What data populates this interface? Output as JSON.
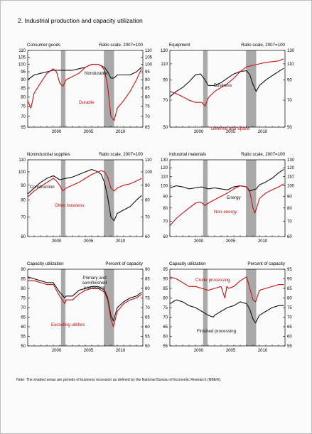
{
  "figure": {
    "title": "2.  Industrial production and capacity utilization",
    "note": "Note: The shaded areas are periods of business recession as defined by the National Bureau of Economic Research (NBER)."
  },
  "colors": {
    "black_series": "#111111",
    "red_series": "#cc1111",
    "recession_shading": "#a9a9a9",
    "axis": "#000000"
  },
  "chart_data": [
    {
      "type": "line",
      "title": "Consumer goods",
      "scale_note": "Ratio scale, 2007=100",
      "log_scale": true,
      "xlim": [
        1996,
        2014
      ],
      "x_ticks": [
        2000,
        2005,
        2010
      ],
      "ylim": [
        65,
        110
      ],
      "y_ticks": [
        65,
        70,
        75,
        80,
        85,
        90,
        95,
        100,
        105,
        110
      ],
      "recessions": [
        [
          2001.2,
          2001.9
        ],
        [
          2007.9,
          2009.5
        ]
      ],
      "series": [
        {
          "name": "Nondurable",
          "color": "black",
          "x": [
            1996,
            1997,
            1998,
            1999,
            2000,
            2001,
            2002,
            2003,
            2004,
            2005,
            2006,
            2007,
            2008,
            2008.5,
            2009,
            2009.5,
            2010,
            2011,
            2012,
            2013,
            2013.8
          ],
          "y": [
            90,
            93,
            94,
            95,
            96,
            96,
            96,
            96,
            97,
            98,
            100,
            100,
            98,
            95,
            91,
            91,
            93,
            93,
            93,
            95,
            98
          ]
        },
        {
          "name": "Durable",
          "color": "red",
          "x": [
            1996,
            1996.5,
            1997,
            1998,
            1999,
            2000,
            2000.5,
            2001,
            2001.5,
            2002,
            2003,
            2004,
            2005,
            2006,
            2007,
            2007.5,
            2008,
            2008.5,
            2009,
            2009.5,
            2010,
            2011,
            2012,
            2013,
            2013.8
          ],
          "y": [
            78,
            74,
            82,
            88,
            94,
            97,
            95,
            88,
            86,
            90,
            92,
            94,
            98,
            100,
            100,
            99,
            96,
            86,
            70,
            68,
            74,
            78,
            83,
            90,
            97
          ]
        }
      ],
      "labels": [
        "Nondurable",
        "Durable"
      ]
    },
    {
      "type": "line",
      "title": "Equipment",
      "scale_note": "Ratio scale, 2007=100",
      "log_scale": true,
      "xlim": [
        1996,
        2014
      ],
      "x_ticks": [
        2000,
        2005,
        2010
      ],
      "ylim": [
        50,
        130
      ],
      "y_ticks": [
        50,
        70,
        90,
        110,
        130
      ],
      "recessions": [
        [
          2001.2,
          2001.9
        ],
        [
          2007.9,
          2009.5
        ]
      ],
      "series": [
        {
          "name": "Business",
          "color": "black",
          "x": [
            1996,
            1997,
            1998,
            1999,
            2000,
            2000.8,
            2001.5,
            2002,
            2003,
            2004,
            2005,
            2006,
            2007,
            2008,
            2008.5,
            2009,
            2009.5,
            2010,
            2011,
            2012,
            2013,
            2013.8
          ],
          "y": [
            73,
            78,
            82,
            88,
            96,
            97,
            90,
            84,
            84,
            87,
            92,
            97,
            100,
            101,
            96,
            85,
            78,
            84,
            90,
            95,
            100,
            104
          ]
        },
        {
          "name": "Defense and Space",
          "color": "red",
          "x": [
            1996,
            1997,
            1998,
            1999,
            2000,
            2001,
            2001.5,
            2002,
            2003,
            2004,
            2005,
            2006,
            2007,
            2008,
            2009,
            2010,
            2011,
            2012,
            2013,
            2013.8
          ],
          "y": [
            78,
            76,
            73,
            70,
            68,
            68,
            65,
            72,
            78,
            82,
            86,
            92,
            100,
            106,
            108,
            110,
            112,
            113,
            114,
            117
          ]
        }
      ],
      "labels": [
        "Business",
        "Defense and Space"
      ]
    },
    {
      "type": "line",
      "title": "Nonindustrial supplies",
      "scale_note": "Ratio scale, 2007=100",
      "log_scale": true,
      "xlim": [
        1996,
        2014
      ],
      "x_ticks": [
        2000,
        2005,
        2010
      ],
      "ylim": [
        60,
        110
      ],
      "y_ticks": [
        60,
        70,
        80,
        90,
        100,
        110
      ],
      "recessions": [
        [
          2001.2,
          2001.9
        ],
        [
          2007.9,
          2009.5
        ]
      ],
      "series": [
        {
          "name": "Construction",
          "color": "black",
          "x": [
            1996,
            1997,
            1998,
            1999,
            2000,
            2001,
            2002,
            2003,
            2004,
            2005,
            2006,
            2007,
            2007.5,
            2008,
            2008.5,
            2009,
            2009.5,
            2010,
            2011,
            2012,
            2013,
            2013.8
          ],
          "y": [
            84,
            88,
            92,
            95,
            97,
            94,
            95,
            96,
            98,
            100,
            102,
            100,
            98,
            92,
            82,
            70,
            68,
            72,
            74,
            76,
            80,
            83
          ]
        },
        {
          "name": "Other business",
          "color": "red",
          "x": [
            1996,
            1997,
            1998,
            1999,
            2000,
            2000.5,
            2001,
            2001.5,
            2002,
            2003,
            2004,
            2005,
            2006,
            2007,
            2007.5,
            2008,
            2008.5,
            2009,
            2009.5,
            2010,
            2011,
            2012,
            2013,
            2013.8
          ],
          "y": [
            82,
            86,
            89,
            92,
            95,
            93,
            90,
            86,
            88,
            90,
            92,
            95,
            98,
            100,
            101,
            100,
            96,
            88,
            86,
            88,
            90,
            91,
            93,
            95
          ]
        }
      ],
      "labels": [
        "Construction",
        "Other business"
      ]
    },
    {
      "type": "line",
      "title": "Industrial materials",
      "scale_note": "Ratio scale, 2007=100",
      "log_scale": true,
      "xlim": [
        1996,
        2014
      ],
      "x_ticks": [
        2000,
        2005,
        2010
      ],
      "ylim": [
        60,
        130
      ],
      "y_ticks": [
        60,
        70,
        80,
        90,
        100,
        110,
        120,
        130
      ],
      "recessions": [
        [
          2001.2,
          2001.9
        ],
        [
          2007.9,
          2009.5
        ]
      ],
      "series": [
        {
          "name": "Energy",
          "color": "black",
          "x": [
            1996,
            1997,
            1998,
            1999,
            2000,
            2001,
            2002,
            2003,
            2004,
            2005,
            2006,
            2007,
            2008,
            2008.5,
            2009,
            2009.5,
            2010,
            2011,
            2012,
            2013,
            2013.8
          ],
          "y": [
            98,
            100,
            99,
            97,
            98,
            99,
            97,
            98,
            97,
            96,
            99,
            100,
            99,
            95,
            96,
            97,
            101,
            104,
            108,
            114,
            118
          ]
        },
        {
          "name": "Non-energy",
          "color": "red",
          "x": [
            1996,
            1997,
            1998,
            1999,
            2000,
            2000.8,
            2001.5,
            2002,
            2003,
            2004,
            2005,
            2006,
            2007,
            2008,
            2008.5,
            2009,
            2009.3,
            2009.8,
            2010,
            2011,
            2012,
            2013,
            2013.8
          ],
          "y": [
            67,
            72,
            76,
            80,
            84,
            85,
            82,
            84,
            87,
            90,
            93,
            97,
            100,
            99,
            94,
            80,
            76,
            84,
            88,
            93,
            96,
            99,
            102
          ]
        }
      ],
      "labels": [
        "Energy",
        "Non-energy"
      ]
    },
    {
      "type": "line",
      "title": "Capacity utilization",
      "scale_note": "Percent of capacity",
      "log_scale": false,
      "xlim": [
        1996,
        2014
      ],
      "x_ticks": [
        2000,
        2005,
        2010
      ],
      "ylim": [
        50,
        90
      ],
      "y_ticks": [
        50,
        55,
        60,
        65,
        70,
        75,
        80,
        85,
        90
      ],
      "recessions": [
        [
          2001.2,
          2001.9
        ],
        [
          2007.9,
          2009.5
        ]
      ],
      "series": [
        {
          "name": "Primary and semifinished processing",
          "color": "black",
          "x": [
            1996,
            1997,
            1998,
            1999,
            2000,
            2001,
            2001.8,
            2002,
            2003,
            2004,
            2005,
            2006,
            2007,
            2008,
            2008.5,
            2009,
            2009.4,
            2010,
            2011,
            2012,
            2013,
            2013.8
          ],
          "y": [
            86,
            85,
            84,
            83,
            83,
            78,
            75,
            76,
            76,
            79,
            80,
            81,
            81,
            79,
            75,
            66,
            63,
            70,
            73,
            75,
            76,
            78
          ]
        },
        {
          "name": "Excluding utilities",
          "color": "red",
          "x": [
            1996,
            1997,
            1998,
            1999,
            2000,
            2001,
            2001.8,
            2002,
            2003,
            2004,
            2005,
            2006,
            2007,
            2008,
            2008.5,
            2009,
            2009.4,
            2010,
            2011,
            2012,
            2013,
            2013.8
          ],
          "y": [
            84,
            84,
            83,
            82,
            82,
            76,
            72,
            74,
            74,
            77,
            79,
            80,
            80,
            78,
            74,
            64,
            60,
            68,
            72,
            74,
            75,
            77
          ]
        }
      ],
      "labels": [
        "Primary and semifinished processing",
        "Excluding utilities"
      ]
    },
    {
      "type": "line",
      "title": "Capacity utilization",
      "scale_note": "Percent of capacity",
      "log_scale": false,
      "xlim": [
        1996,
        2014
      ],
      "x_ticks": [
        2000,
        2005,
        2010
      ],
      "ylim": [
        55,
        95
      ],
      "y_ticks": [
        55,
        60,
        65,
        70,
        75,
        80,
        85,
        90,
        95
      ],
      "recessions": [
        [
          2001.2,
          2001.9
        ],
        [
          2007.9,
          2009.5
        ]
      ],
      "series": [
        {
          "name": "Crude processing",
          "color": "red",
          "x": [
            1996,
            1997,
            1998,
            1999,
            2000,
            2001,
            2002,
            2003,
            2004,
            2004.6,
            2004.9,
            2005.2,
            2006,
            2007,
            2007.5,
            2008,
            2008.5,
            2009,
            2009.4,
            2010,
            2011,
            2012,
            2013,
            2013.8
          ],
          "y": [
            91,
            90,
            88,
            86,
            86,
            85,
            84,
            85,
            86,
            80,
            86,
            85,
            86,
            89,
            90,
            91,
            85,
            79,
            78,
            84,
            85,
            86,
            87,
            87
          ]
        },
        {
          "name": "Finished processing",
          "color": "black",
          "x": [
            1996,
            1997,
            1998,
            1999,
            2000,
            2001,
            2002,
            2002.8,
            2003,
            2004,
            2005,
            2006,
            2007,
            2008,
            2008.5,
            2009,
            2009.4,
            2010,
            2011,
            2012,
            2013,
            2013.8
          ],
          "y": [
            77,
            79,
            78,
            76,
            75,
            73,
            71,
            70,
            71,
            73,
            75,
            76,
            78,
            77,
            74,
            69,
            67,
            71,
            73,
            75,
            76,
            76
          ]
        }
      ],
      "labels": [
        "Crude processing",
        "Finished processing"
      ]
    }
  ]
}
